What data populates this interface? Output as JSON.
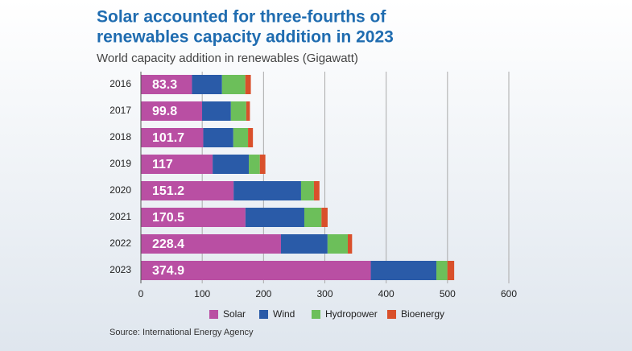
{
  "chart_data": {
    "type": "bar",
    "orientation": "horizontal",
    "stacked": true,
    "title": [
      "Solar accounted for three-fourths of",
      "renewables capacity addition in 2023"
    ],
    "subtitle": "World capacity addition in renewables (Gigawatt)",
    "categories": [
      "2016",
      "2017",
      "2018",
      "2019",
      "2020",
      "2021",
      "2022",
      "2023"
    ],
    "series": [
      {
        "name": "Solar",
        "color": "#b94fa3",
        "values": [
          83.3,
          99.8,
          101.7,
          117,
          151.2,
          170.5,
          228.4,
          374.9
        ]
      },
      {
        "name": "Wind",
        "color": "#2a5ba8",
        "values": [
          49,
          47,
          49,
          59,
          110,
          96,
          76,
          107
        ]
      },
      {
        "name": "Hydropower",
        "color": "#6cbf5a",
        "values": [
          38,
          25,
          24,
          18,
          21,
          28,
          33,
          18
        ]
      },
      {
        "name": "Bioenergy",
        "color": "#d9502b",
        "values": [
          9,
          6,
          8,
          9,
          9,
          10,
          7,
          11
        ]
      }
    ],
    "xlim": [
      0,
      600
    ],
    "xticks": [
      0,
      100,
      200,
      300,
      400,
      500,
      600
    ],
    "grid": true,
    "legend": "bottom",
    "source": "Source: International Energy Agency"
  }
}
